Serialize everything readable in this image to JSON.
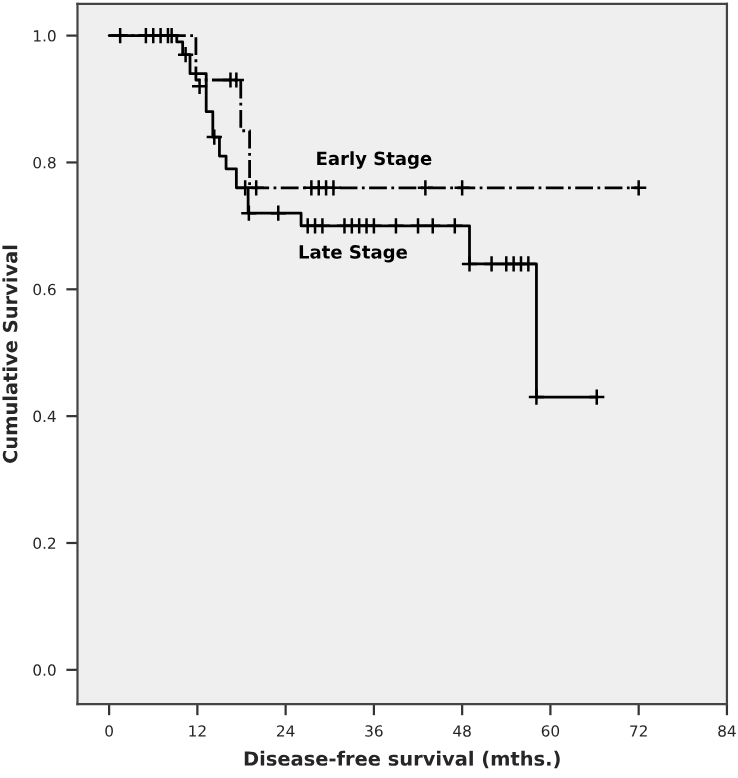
{
  "chart_data": {
    "type": "step",
    "xlabel": "Disease-free survival (mths.)",
    "ylabel": "Cumulative Survival",
    "xlim": [
      -4.3,
      84
    ],
    "ylim": [
      -0.054,
      1.05
    ],
    "xticks": [
      0,
      12,
      24,
      36,
      48,
      60,
      72,
      84
    ],
    "yticks": [
      {
        "value": 0,
        "label": "0.0"
      },
      0.2,
      0.4,
      0.6,
      0.8,
      {
        "value": 1,
        "label": "1.0"
      }
    ],
    "grid": false,
    "legend": false,
    "series": [
      {
        "name": "Early Stage",
        "color": "#000000",
        "line_style": "dashdot",
        "marker": "none",
        "x": [
          0,
          11.8,
          17.9,
          19.1,
          72
        ],
        "values": [
          1.0,
          0.93,
          0.85,
          0.76,
          0.76
        ]
      },
      {
        "type": "scatter",
        "color": "#000000",
        "marker": "cross",
        "x": [
          16.5,
          17.3,
          20,
          27.5,
          28.5,
          29.5,
          30.5,
          43,
          48,
          72
        ],
        "values": [
          0.93,
          0.93,
          0.76,
          0.76,
          0.76,
          0.76,
          0.76,
          0.76,
          0.76,
          0.76
        ]
      },
      {
        "name": "Late Stage",
        "color": "#000000",
        "line_style": "solid",
        "marker": "none",
        "x": [
          0,
          9.2,
          10.0,
          11.0,
          13.2,
          14.1,
          15.0,
          15.9,
          17.3,
          18.9,
          26.1,
          49,
          58.1,
          66.3
        ],
        "values": [
          1.0,
          0.99,
          0.97,
          0.94,
          0.88,
          0.84,
          0.81,
          0.79,
          0.76,
          0.72,
          0.7,
          0.64,
          0.43,
          0.43
        ]
      },
      {
        "type": "scatter",
        "color": "#000000",
        "marker": "cross",
        "x": [
          1.5,
          5,
          6,
          7,
          8,
          8.5,
          10.4,
          12.3,
          14.3,
          18.5,
          19,
          23,
          27,
          28,
          29,
          32,
          33,
          34,
          35,
          36,
          39,
          42,
          44,
          47,
          49,
          52,
          54,
          55,
          56,
          57,
          58.1,
          66.3
        ],
        "values": [
          1,
          1,
          1,
          1,
          1,
          1,
          0.97,
          0.92,
          0.84,
          0.76,
          0.72,
          0.72,
          0.7,
          0.7,
          0.7,
          0.7,
          0.7,
          0.7,
          0.7,
          0.7,
          0.7,
          0.7,
          0.7,
          0.7,
          0.64,
          0.64,
          0.64,
          0.64,
          0.64,
          0.64,
          0.43,
          0.43
        ]
      }
    ]
  }
}
